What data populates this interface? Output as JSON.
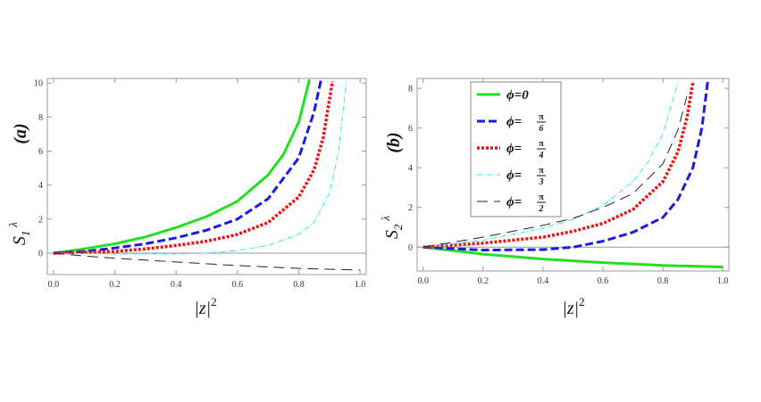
{
  "chart_data": [
    {
      "type": "line",
      "panel_label": "(a)",
      "xlabel": "|z|",
      "xlabel_sup": "2",
      "ylabel": "S",
      "ylabel_sub": "1",
      "ylabel_sup": "λ",
      "xlim": [
        -0.02,
        1.02
      ],
      "ylim": [
        -1.26,
        10.27
      ],
      "xticks": [
        "0.0",
        "0.2",
        "0.4",
        "0.6",
        "0.8",
        "1.0"
      ],
      "yticks": [
        "0",
        "2",
        "4",
        "6",
        "8",
        "10"
      ],
      "grid": false,
      "series": [
        {
          "key": "phi0",
          "color": "#22e022",
          "points": [
            [
              0,
              0
            ],
            [
              0.1,
              0.25
            ],
            [
              0.2,
              0.55
            ],
            [
              0.3,
              0.95
            ],
            [
              0.4,
              1.5
            ],
            [
              0.5,
              2.15
            ],
            [
              0.6,
              3.05
            ],
            [
              0.7,
              4.6
            ],
            [
              0.75,
              5.8
            ],
            [
              0.8,
              7.7
            ],
            [
              0.835,
              10.2
            ]
          ]
        },
        {
          "key": "phi_pi6",
          "color": "#1a1ae6",
          "points": [
            [
              0,
              0
            ],
            [
              0.1,
              0.1
            ],
            [
              0.2,
              0.3
            ],
            [
              0.3,
              0.55
            ],
            [
              0.4,
              0.9
            ],
            [
              0.5,
              1.35
            ],
            [
              0.6,
              2.0
            ],
            [
              0.7,
              3.2
            ],
            [
              0.8,
              5.6
            ],
            [
              0.85,
              8.3
            ],
            [
              0.873,
              10.2
            ]
          ]
        },
        {
          "key": "phi_pi4",
          "color": "#ee1111",
          "points": [
            [
              0,
              0
            ],
            [
              0.2,
              0.1
            ],
            [
              0.3,
              0.25
            ],
            [
              0.4,
              0.45
            ],
            [
              0.5,
              0.7
            ],
            [
              0.6,
              1.1
            ],
            [
              0.7,
              1.8
            ],
            [
              0.8,
              3.3
            ],
            [
              0.85,
              4.9
            ],
            [
              0.88,
              6.8
            ],
            [
              0.91,
              10.1
            ]
          ]
        },
        {
          "key": "phi_pi3",
          "color": "#33e6f0",
          "points": [
            [
              0,
              0
            ],
            [
              0.2,
              -0.05
            ],
            [
              0.4,
              -0.05
            ],
            [
              0.5,
              0.0
            ],
            [
              0.6,
              0.15
            ],
            [
              0.7,
              0.45
            ],
            [
              0.8,
              1.1
            ],
            [
              0.85,
              1.8
            ],
            [
              0.9,
              3.5
            ],
            [
              0.93,
              6.0
            ],
            [
              0.955,
              10.1
            ]
          ]
        },
        {
          "key": "phi_pi2",
          "color": "#222222",
          "points": [
            [
              0,
              0
            ],
            [
              0.1,
              -0.17
            ],
            [
              0.2,
              -0.3
            ],
            [
              0.4,
              -0.52
            ],
            [
              0.6,
              -0.73
            ],
            [
              0.8,
              -0.9
            ],
            [
              1.0,
              -1.0
            ]
          ]
        }
      ]
    },
    {
      "type": "line",
      "panel_label": "(b)",
      "xlabel": "|z|",
      "xlabel_sup": "2",
      "ylabel": "S",
      "ylabel_sub": "2",
      "ylabel_sup": "λ",
      "xlim": [
        -0.02,
        1.02
      ],
      "ylim": [
        -1.2,
        8.5
      ],
      "xticks": [
        "0.0",
        "0.2",
        "0.4",
        "0.6",
        "0.8",
        "1.0"
      ],
      "yticks": [
        "0",
        "2",
        "4",
        "6",
        "8"
      ],
      "grid": false,
      "legend_position": "top-left",
      "series": [
        {
          "key": "phi0",
          "color": "#22e022",
          "points": [
            [
              0,
              0
            ],
            [
              0.2,
              -0.35
            ],
            [
              0.4,
              -0.6
            ],
            [
              0.6,
              -0.78
            ],
            [
              0.8,
              -0.92
            ],
            [
              1.0,
              -1.0
            ]
          ]
        },
        {
          "key": "phi_pi6",
          "color": "#1a1ae6",
          "points": [
            [
              0,
              0
            ],
            [
              0.2,
              -0.15
            ],
            [
              0.4,
              -0.12
            ],
            [
              0.5,
              0.0
            ],
            [
              0.6,
              0.3
            ],
            [
              0.7,
              0.75
            ],
            [
              0.8,
              1.5
            ],
            [
              0.85,
              2.4
            ],
            [
              0.9,
              4.0
            ],
            [
              0.93,
              6.0
            ],
            [
              0.95,
              8.4
            ]
          ]
        },
        {
          "key": "phi_pi4",
          "color": "#ee1111",
          "points": [
            [
              0,
              0
            ],
            [
              0.2,
              0.2
            ],
            [
              0.4,
              0.5
            ],
            [
              0.5,
              0.8
            ],
            [
              0.6,
              1.2
            ],
            [
              0.7,
              1.9
            ],
            [
              0.8,
              3.3
            ],
            [
              0.85,
              4.8
            ],
            [
              0.88,
              6.5
            ],
            [
              0.9,
              8.3
            ]
          ]
        },
        {
          "key": "phi_pi3",
          "color": "#33e6f0",
          "points": [
            [
              0,
              0
            ],
            [
              0.2,
              0.35
            ],
            [
              0.4,
              0.95
            ],
            [
              0.5,
              1.4
            ],
            [
              0.6,
              2.1
            ],
            [
              0.7,
              3.3
            ],
            [
              0.75,
              4.3
            ],
            [
              0.8,
              5.7
            ],
            [
              0.85,
              8.3
            ]
          ]
        },
        {
          "key": "phi_pi2",
          "color": "#222222",
          "points": [
            [
              0,
              0
            ],
            [
              0.1,
              0.25
            ],
            [
              0.2,
              0.5
            ],
            [
              0.4,
              1.1
            ],
            [
              0.5,
              1.45
            ],
            [
              0.6,
              2.0
            ],
            [
              0.7,
              2.7
            ],
            [
              0.8,
              4.2
            ],
            [
              0.85,
              5.9
            ],
            [
              0.88,
              7.6
            ]
          ]
        }
      ]
    }
  ],
  "legend": [
    {
      "key": "phi0",
      "lhs": "ϕ=",
      "num": "0",
      "den": ""
    },
    {
      "key": "phi_pi6",
      "lhs": "ϕ=",
      "num": "π",
      "den": "6"
    },
    {
      "key": "phi_pi4",
      "lhs": "ϕ=",
      "num": "π",
      "den": "4"
    },
    {
      "key": "phi_pi3",
      "lhs": "ϕ=",
      "num": "π",
      "den": "3"
    },
    {
      "key": "phi_pi2",
      "lhs": "ϕ=",
      "num": "π",
      "den": "2"
    }
  ]
}
